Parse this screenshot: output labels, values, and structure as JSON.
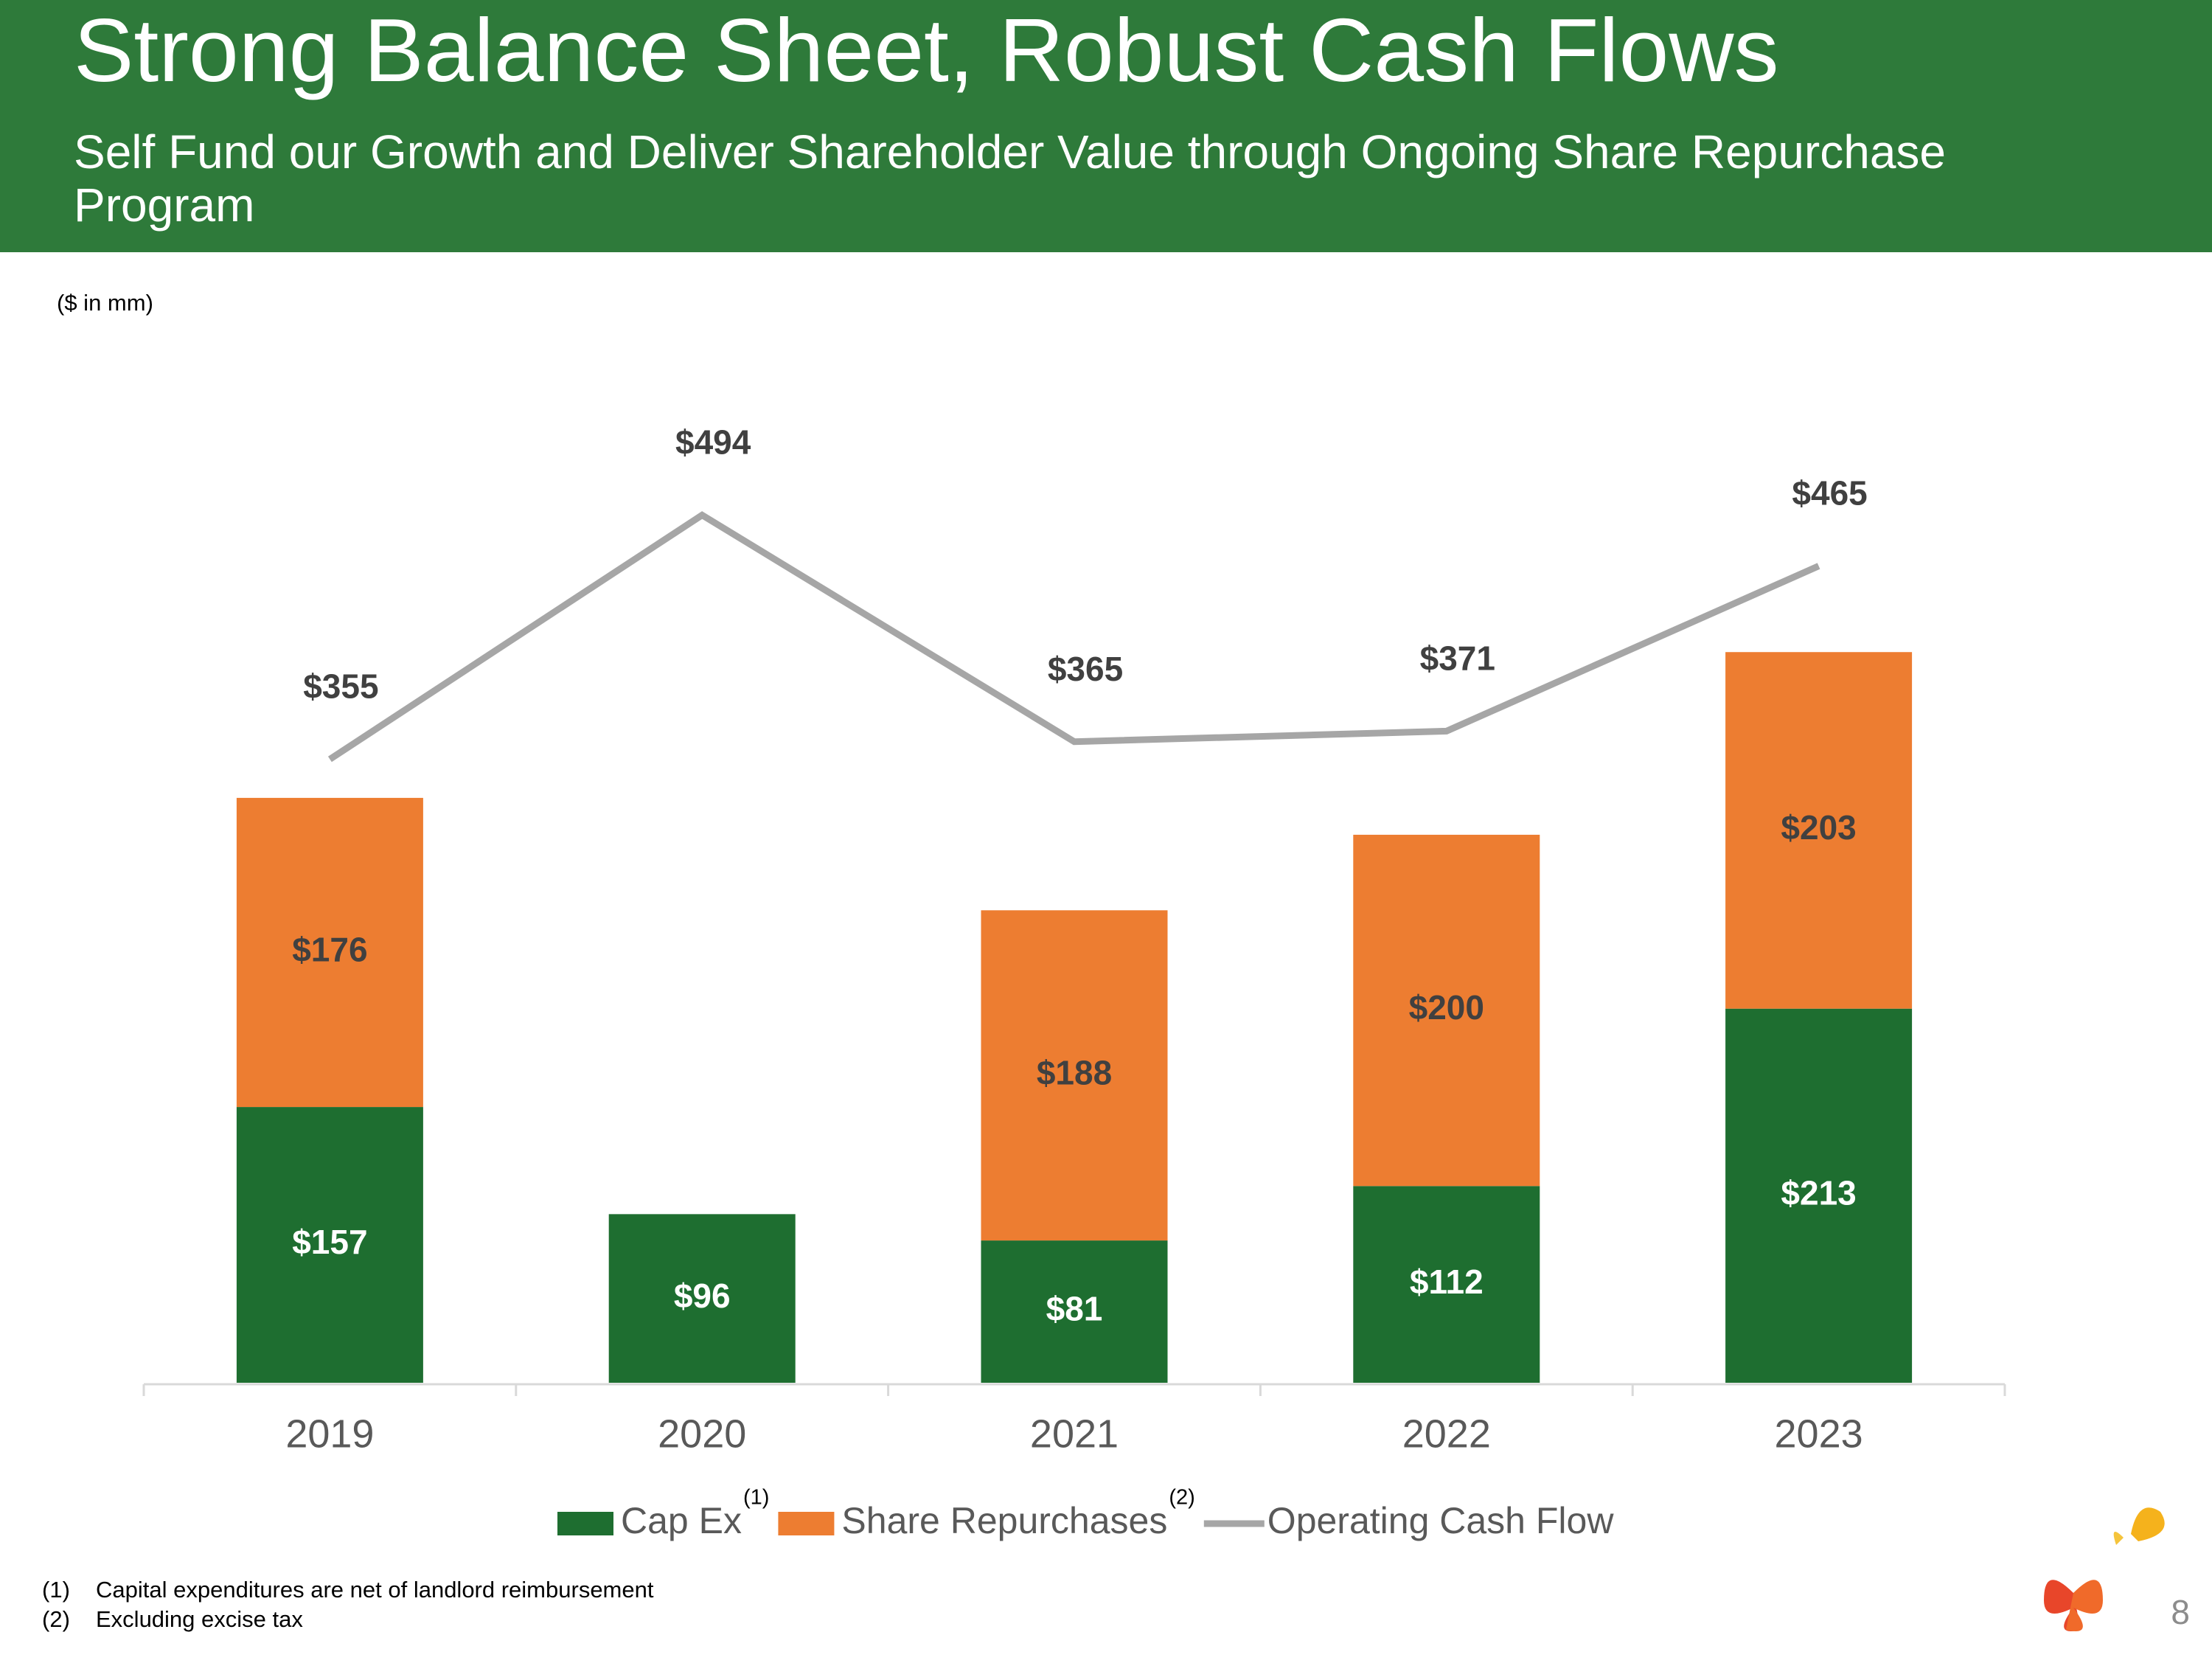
{
  "header": {
    "title": "Strong Balance Sheet, Robust Cash Flows",
    "subtitle": "Self Fund our Growth and Deliver Shareholder Value through Ongoing Share Repurchase Program"
  },
  "chart_data": {
    "type": "stacked-bar-line",
    "units": "($ in mm)",
    "categories": [
      "2019",
      "2020",
      "2021",
      "2022",
      "2023"
    ],
    "ylim": [
      0,
      600
    ],
    "series": [
      {
        "name": "Cap Ex",
        "footnote_marker": "(1)",
        "kind": "bar",
        "color": "#1e6e30",
        "label_color": "#ffffff",
        "values": [
          157,
          96,
          81,
          112,
          213
        ],
        "value_labels": [
          "$157",
          "$96",
          "$81",
          "$112",
          "$213"
        ]
      },
      {
        "name": "Share Repurchases",
        "footnote_marker": "(2)",
        "kind": "bar",
        "color": "#ed7d31",
        "label_color": "#404040",
        "values": [
          176,
          null,
          188,
          200,
          203
        ],
        "value_labels": [
          "$176",
          null,
          "$188",
          "$200",
          "$203"
        ]
      },
      {
        "name": "Operating Cash Flow",
        "kind": "line",
        "color": "#a6a6a6",
        "label_color": "#404040",
        "values": [
          355,
          494,
          365,
          371,
          465
        ],
        "value_labels": [
          "$355",
          "$494",
          "$365",
          "$371",
          "$465"
        ]
      }
    ]
  },
  "footnotes": [
    {
      "marker": "(1)",
      "text": "Capital expenditures are net of landlord reimbursement"
    },
    {
      "marker": "(2)",
      "text": "Excluding excise tax"
    }
  ],
  "page_number": "8"
}
